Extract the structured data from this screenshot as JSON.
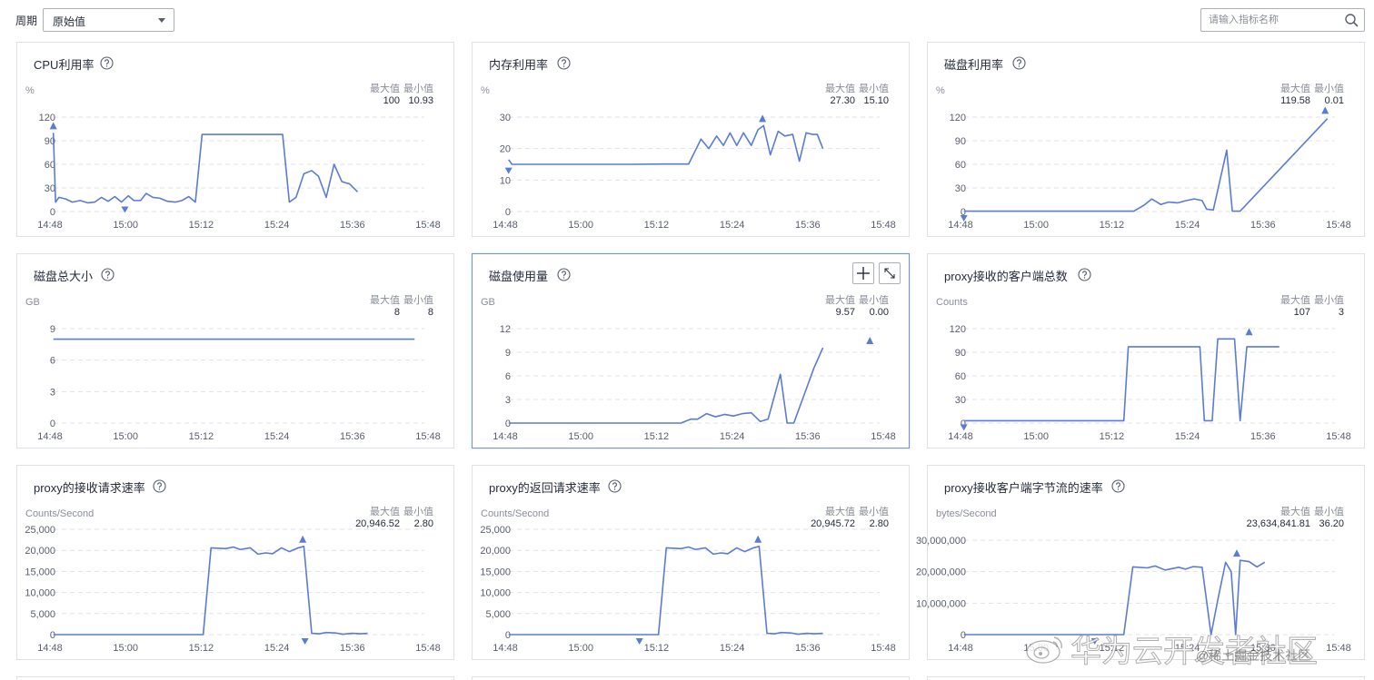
{
  "toolbar": {
    "period_label": "周期",
    "period_value": "原始值",
    "search_placeholder": "请输入指标名称"
  },
  "max_label": "最大值",
  "min_label": "最小值",
  "x_ticks": [
    "14:48",
    "15:00",
    "15:12",
    "15:24",
    "15:36",
    "15:48"
  ],
  "colors": {
    "line": "#5a7bd6",
    "grid": "#e0e3e8",
    "axis_text": "#575d6c",
    "active_border": "#6f94e6"
  },
  "cards": [
    {
      "title": "CPU利用率",
      "unit": "%",
      "max": "100",
      "min": "10.93",
      "y_ticks": [
        "120",
        "90",
        "60",
        "30",
        "0"
      ],
      "ymax": 120,
      "max_at": [
        15.1,
        100
      ],
      "min_at": [
        21.5,
        10.93
      ],
      "series": [
        [
          15.1,
          100
        ],
        [
          15.3,
          12
        ],
        [
          15.6,
          18
        ],
        [
          16.2,
          16
        ],
        [
          16.8,
          12
        ],
        [
          17.5,
          14
        ],
        [
          18.2,
          11
        ],
        [
          18.8,
          12
        ],
        [
          19.4,
          18
        ],
        [
          20.0,
          13
        ],
        [
          20.6,
          19
        ],
        [
          21.2,
          12
        ],
        [
          21.8,
          20
        ],
        [
          22.3,
          14
        ],
        [
          22.9,
          14
        ],
        [
          23.4,
          23
        ],
        [
          24.0,
          18
        ],
        [
          24.6,
          17
        ],
        [
          25.3,
          13
        ],
        [
          26.0,
          12
        ],
        [
          26.6,
          14
        ],
        [
          27.2,
          19
        ],
        [
          27.8,
          12
        ],
        [
          28.4,
          98
        ],
        [
          30,
          98
        ],
        [
          33,
          98
        ],
        [
          35.6,
          98
        ],
        [
          36.2,
          12
        ],
        [
          36.8,
          18
        ],
        [
          37.5,
          48
        ],
        [
          38.2,
          52
        ],
        [
          38.8,
          45
        ],
        [
          39.5,
          18
        ],
        [
          40.2,
          60
        ],
        [
          40.9,
          38
        ],
        [
          41.6,
          35
        ],
        [
          42.3,
          25
        ]
      ],
      "chart_data": {
        "type": "line",
        "x": "time",
        "y_unit": "%",
        "max": 100,
        "min": 10.93
      }
    },
    {
      "title": "内存利用率",
      "unit": "%",
      "max": "27.30",
      "min": "15.10",
      "y_ticks": [
        "30",
        "20",
        "10",
        "0"
      ],
      "ymax": 30,
      "max_at": [
        37.8,
        27.3
      ],
      "min_at": [
        15.1,
        15.1
      ],
      "series": [
        [
          15.1,
          16.5
        ],
        [
          15.4,
          15
        ],
        [
          17,
          15
        ],
        [
          20,
          15
        ],
        [
          23,
          15
        ],
        [
          26,
          15
        ],
        [
          29,
          15.1
        ],
        [
          31.2,
          15.1
        ],
        [
          32.3,
          23
        ],
        [
          33,
          20
        ],
        [
          33.7,
          24
        ],
        [
          34.3,
          21
        ],
        [
          34.9,
          25
        ],
        [
          35.5,
          21
        ],
        [
          36.1,
          25
        ],
        [
          36.8,
          21
        ],
        [
          37.4,
          26
        ],
        [
          37.9,
          27.3
        ],
        [
          38.5,
          18
        ],
        [
          39.2,
          25.5
        ],
        [
          39.8,
          24
        ],
        [
          40.5,
          24.5
        ],
        [
          41.1,
          16
        ],
        [
          41.7,
          25
        ],
        [
          42.3,
          24.5
        ],
        [
          42.7,
          24.5
        ],
        [
          43.2,
          20
        ]
      ],
      "chart_data": {
        "type": "line",
        "x": "time",
        "y_unit": "%",
        "max": 27.3,
        "min": 15.1
      }
    },
    {
      "title": "磁盘利用率",
      "unit": "%",
      "max": "119.58",
      "min": "0.01",
      "y_ticks": [
        "120",
        "90",
        "60",
        "30",
        "0"
      ],
      "ymax": 120,
      "max_at": [
        47.4,
        119.58
      ],
      "min_at": [
        15.1,
        0.01
      ],
      "series": [
        [
          15.1,
          0.5
        ],
        [
          20,
          0.5
        ],
        [
          25,
          0.5
        ],
        [
          29,
          0.5
        ],
        [
          30.3,
          0.5
        ],
        [
          31.2,
          8
        ],
        [
          31.9,
          16
        ],
        [
          32.7,
          9
        ],
        [
          33.4,
          12
        ],
        [
          34.2,
          11
        ],
        [
          35,
          14
        ],
        [
          35.7,
          16
        ],
        [
          36.4,
          14
        ],
        [
          36.8,
          3
        ],
        [
          37.4,
          2
        ],
        [
          38.6,
          78
        ],
        [
          39.1,
          0.5
        ],
        [
          39.8,
          0.5
        ],
        [
          47.6,
          118
        ]
      ],
      "chart_data": {
        "type": "line",
        "x": "time",
        "y_unit": "%",
        "max": 119.58,
        "min": 0.01
      }
    },
    {
      "title": "磁盘总大小",
      "unit": "GB",
      "max": "8",
      "min": "8",
      "y_ticks": [
        "9",
        "6",
        "3",
        "0"
      ],
      "ymax": 9,
      "max_at": null,
      "min_at": null,
      "series": [
        [
          15.1,
          8
        ],
        [
          47.4,
          8
        ]
      ],
      "chart_data": {
        "type": "line",
        "x": "time",
        "y_unit": "GB",
        "max": 8,
        "min": 8
      }
    },
    {
      "title": "磁盘使用量",
      "unit": "GB",
      "max": "9.57",
      "min": "0.00",
      "y_ticks": [
        "12",
        "9",
        "6",
        "3",
        "0"
      ],
      "ymax": 12,
      "max_at": [
        47.4,
        9.57
      ],
      "min_at": null,
      "series": [
        [
          15.1,
          0
        ],
        [
          20,
          0
        ],
        [
          25,
          0
        ],
        [
          30.5,
          0
        ],
        [
          31.4,
          0.5
        ],
        [
          32,
          0.5
        ],
        [
          32.8,
          1.2
        ],
        [
          33.6,
          0.8
        ],
        [
          34.4,
          1.1
        ],
        [
          35.2,
          0.9
        ],
        [
          36,
          1.2
        ],
        [
          36.8,
          1.3
        ],
        [
          37.6,
          0.2
        ],
        [
          38.3,
          0.5
        ],
        [
          39.4,
          6.2
        ],
        [
          40,
          0
        ],
        [
          40.6,
          0
        ],
        [
          42.4,
          7
        ],
        [
          43.2,
          9.57
        ]
      ],
      "chart_data": {
        "type": "line",
        "x": "time",
        "y_unit": "GB",
        "max": 9.57,
        "min": 0
      }
    },
    {
      "title": "proxy接收的客户端总数",
      "unit": "Counts",
      "max": "107",
      "min": "3",
      "y_ticks": [
        "120",
        "90",
        "60",
        "30",
        "0"
      ],
      "ymax": 120,
      "max_at": [
        40.6,
        107
      ],
      "min_at": [
        15.1,
        3
      ],
      "series": [
        [
          15.1,
          3
        ],
        [
          20,
          3
        ],
        [
          25,
          3
        ],
        [
          29.4,
          3
        ],
        [
          29.8,
          97
        ],
        [
          32,
          97
        ],
        [
          36.2,
          97
        ],
        [
          36.6,
          3
        ],
        [
          37.3,
          3
        ],
        [
          37.8,
          107
        ],
        [
          39.3,
          107
        ],
        [
          39.8,
          3
        ],
        [
          40.4,
          97
        ],
        [
          43.3,
          97
        ]
      ],
      "chart_data": {
        "type": "line",
        "x": "time",
        "y_unit": "Counts",
        "max": 107,
        "min": 3
      }
    },
    {
      "title": "proxy的接收请求速率",
      "unit": "Counts/Second",
      "max": "20,946.52",
      "min": "2.80",
      "y_ticks": [
        "25,000",
        "20,000",
        "15,000",
        "10,000",
        "5,000",
        "0"
      ],
      "ymax": 25000,
      "max_at": [
        37.4,
        20946.52
      ],
      "min_at": [
        37.6,
        2.8
      ],
      "series": [
        [
          15.1,
          0
        ],
        [
          20,
          0
        ],
        [
          25,
          0
        ],
        [
          28.5,
          0
        ],
        [
          29.2,
          20600
        ],
        [
          30.5,
          20400
        ],
        [
          31.2,
          20800
        ],
        [
          31.8,
          20200
        ],
        [
          32.7,
          20600
        ],
        [
          33.4,
          19100
        ],
        [
          34.1,
          19400
        ],
        [
          34.7,
          19200
        ],
        [
          35.5,
          20600
        ],
        [
          36.2,
          19700
        ],
        [
          37,
          20600
        ],
        [
          37.5,
          20946
        ],
        [
          38.2,
          300
        ],
        [
          38.9,
          200
        ],
        [
          39.5,
          500
        ],
        [
          40.3,
          400
        ],
        [
          41,
          100
        ],
        [
          41.8,
          300
        ],
        [
          42.6,
          200
        ],
        [
          43.2,
          300
        ]
      ],
      "chart_data": {
        "type": "line",
        "x": "time",
        "y_unit": "Counts/Second",
        "max": 20946.52,
        "min": 2.8
      }
    },
    {
      "title": "proxy的返回请求速率",
      "unit": "Counts/Second",
      "max": "20,945.72",
      "min": "2.80",
      "y_ticks": [
        "25,000",
        "20,000",
        "15,000",
        "10,000",
        "5,000",
        "0"
      ],
      "ymax": 25000,
      "max_at": [
        37.4,
        20945.72
      ],
      "min_at": [
        26.8,
        2.8
      ],
      "series": [
        [
          15.1,
          0
        ],
        [
          20,
          0
        ],
        [
          25,
          0
        ],
        [
          28.5,
          0
        ],
        [
          29.2,
          20600
        ],
        [
          30.5,
          20400
        ],
        [
          31.2,
          20800
        ],
        [
          31.8,
          20200
        ],
        [
          32.7,
          20600
        ],
        [
          33.4,
          19100
        ],
        [
          34.1,
          19400
        ],
        [
          34.7,
          19200
        ],
        [
          35.5,
          20600
        ],
        [
          36.2,
          19700
        ],
        [
          37,
          20600
        ],
        [
          37.5,
          20945
        ],
        [
          38.2,
          300
        ],
        [
          38.9,
          200
        ],
        [
          39.5,
          500
        ],
        [
          40.3,
          400
        ],
        [
          41,
          100
        ],
        [
          41.8,
          300
        ],
        [
          42.6,
          200
        ],
        [
          43.2,
          300
        ]
      ],
      "chart_data": {
        "type": "line",
        "x": "time",
        "y_unit": "Counts/Second",
        "max": 20945.72,
        "min": 2.8
      }
    },
    {
      "title": "proxy接收客户端字节流的速率",
      "unit": "bytes/Second",
      "max": "23,634,841.81",
      "min": "36.20",
      "y_ticks": [
        "30,000,000",
        "20,000,000",
        "10,000,000",
        "0"
      ],
      "ymax": 30000000,
      "max_at": [
        39.5,
        23634841.81
      ],
      "min_at": [
        26.8,
        36.2
      ],
      "series": [
        [
          15.1,
          0
        ],
        [
          20,
          0
        ],
        [
          25,
          0
        ],
        [
          29.4,
          0
        ],
        [
          30.2,
          21500000
        ],
        [
          31.5,
          21200000
        ],
        [
          32.2,
          21800000
        ],
        [
          33.1,
          20500000
        ],
        [
          34.3,
          21400000
        ],
        [
          34.9,
          20800000
        ],
        [
          35.6,
          21600000
        ],
        [
          36.4,
          21400000
        ],
        [
          37.2,
          0
        ],
        [
          37.8,
          11000000
        ],
        [
          38.5,
          23000000
        ],
        [
          39,
          20000000
        ],
        [
          39.4,
          0
        ],
        [
          39.8,
          23600000
        ],
        [
          40.6,
          23200000
        ],
        [
          41.3,
          21500000
        ],
        [
          42,
          23000000
        ]
      ],
      "chart_data": {
        "type": "line",
        "x": "time",
        "y_unit": "bytes/Second",
        "max": 23634841.81,
        "min": 36.2
      }
    }
  ],
  "watermark": {
    "big": "华为云开发者社区",
    "small": "@稀土掘金技术社区"
  }
}
